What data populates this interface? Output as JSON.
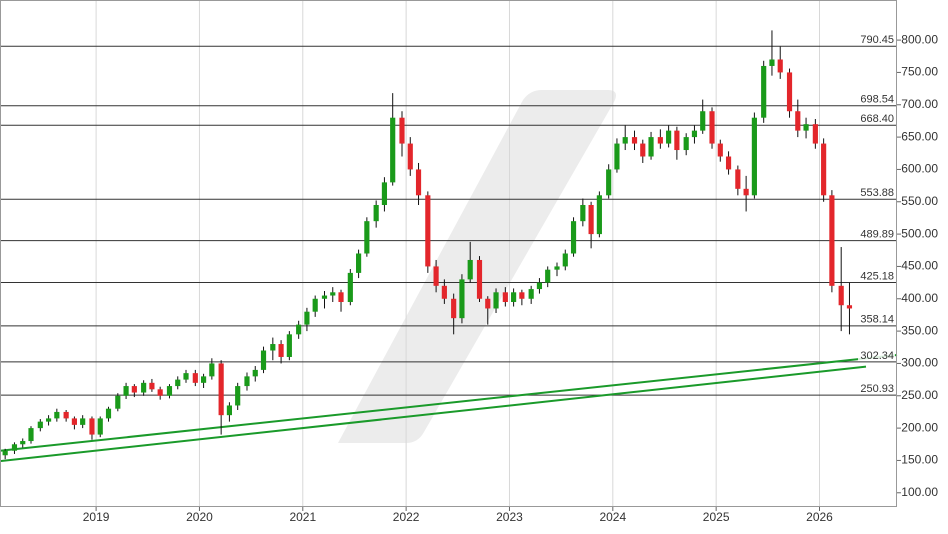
{
  "chart_data": {
    "type": "candlestick",
    "up_color": "#1a9a1a",
    "down_color": "#e3262b",
    "wick_color": "#111111",
    "trend_color": "#1a9a2a",
    "level_color": "#333333",
    "grid": true,
    "xlim": [
      2018.07,
      2026.75
    ],
    "xticks": [
      2019,
      2020,
      2021,
      2022,
      2023,
      2024,
      2025,
      2026
    ],
    "ylim": [
      78,
      862
    ],
    "yticks": [
      {
        "value": 100,
        "label": "100.00"
      },
      {
        "value": 150,
        "label": "150.00"
      },
      {
        "value": 200,
        "label": "200.00"
      },
      {
        "value": 250,
        "label": "250.00"
      },
      {
        "value": 300,
        "label": "300.00"
      },
      {
        "value": 350,
        "label": "350.00"
      },
      {
        "value": 400,
        "label": "400.00"
      },
      {
        "value": 450,
        "label": "450.00"
      },
      {
        "value": 500,
        "label": "500.00"
      },
      {
        "value": 550,
        "label": "550.00"
      },
      {
        "value": 600,
        "label": "600.00"
      },
      {
        "value": 650,
        "label": "650.00"
      },
      {
        "value": 700,
        "label": "700.00"
      },
      {
        "value": 750,
        "label": "750.00"
      },
      {
        "value": 800,
        "label": "800.00"
      }
    ],
    "levels": [
      790.45,
      698.54,
      {
        "value": 668.4,
        "label": "668.40"
      },
      553.88,
      489.89,
      425.18,
      358.14,
      302.34,
      250.93
    ],
    "trendlines": [
      {
        "x": [
          2018.07,
          2026.75
        ],
        "y": [
          165,
          313
        ]
      },
      {
        "x": [
          2018.07,
          2026.45
        ],
        "y": [
          149,
          295
        ]
      }
    ],
    "x": [
      2018.12,
      2018.21,
      2018.29,
      2018.37,
      2018.46,
      2018.54,
      2018.62,
      2018.71,
      2018.79,
      2018.87,
      2018.96,
      2019.04,
      2019.12,
      2019.21,
      2019.29,
      2019.37,
      2019.46,
      2019.54,
      2019.62,
      2019.71,
      2019.79,
      2019.87,
      2019.96,
      2020.04,
      2020.12,
      2020.21,
      2020.29,
      2020.37,
      2020.46,
      2020.54,
      2020.62,
      2020.71,
      2020.79,
      2020.87,
      2020.96,
      2021.04,
      2021.12,
      2021.21,
      2021.29,
      2021.37,
      2021.46,
      2021.54,
      2021.62,
      2021.71,
      2021.79,
      2021.87,
      2021.96,
      2022.04,
      2022.12,
      2022.21,
      2022.29,
      2022.37,
      2022.46,
      2022.54,
      2022.62,
      2022.71,
      2022.79,
      2022.87,
      2022.96,
      2023.04,
      2023.12,
      2023.21,
      2023.29,
      2023.37,
      2023.46,
      2023.54,
      2023.62,
      2023.71,
      2023.79,
      2023.87,
      2023.96,
      2024.04,
      2024.12,
      2024.21,
      2024.29,
      2024.37,
      2024.46,
      2024.54,
      2024.62,
      2024.71,
      2024.79,
      2024.87,
      2024.96,
      2025.04,
      2025.12,
      2025.21,
      2025.29,
      2025.37,
      2025.46,
      2025.54,
      2025.62,
      2025.71,
      2025.79,
      2025.87,
      2025.96,
      2026.04,
      2026.12,
      2026.21,
      2026.29
    ],
    "ohlc": [
      [
        158,
        168,
        152,
        165
      ],
      [
        165,
        178,
        160,
        175
      ],
      [
        175,
        184,
        170,
        180
      ],
      [
        180,
        203,
        176,
        200
      ],
      [
        200,
        214,
        195,
        210
      ],
      [
        210,
        220,
        204,
        215
      ],
      [
        215,
        230,
        210,
        225
      ],
      [
        225,
        228,
        210,
        215
      ],
      [
        215,
        218,
        198,
        205
      ],
      [
        205,
        220,
        200,
        215
      ],
      [
        215,
        218,
        182,
        190
      ],
      [
        190,
        218,
        186,
        215
      ],
      [
        215,
        233,
        210,
        230
      ],
      [
        230,
        254,
        226,
        250
      ],
      [
        250,
        270,
        245,
        265
      ],
      [
        265,
        268,
        248,
        255
      ],
      [
        255,
        274,
        250,
        270
      ],
      [
        270,
        276,
        256,
        260
      ],
      [
        260,
        264,
        244,
        250
      ],
      [
        250,
        268,
        246,
        265
      ],
      [
        265,
        280,
        260,
        275
      ],
      [
        275,
        290,
        270,
        285
      ],
      [
        285,
        290,
        265,
        270
      ],
      [
        270,
        284,
        262,
        280
      ],
      [
        280,
        308,
        275,
        300
      ],
      [
        300,
        305,
        190,
        220
      ],
      [
        220,
        240,
        210,
        235
      ],
      [
        235,
        270,
        228,
        265
      ],
      [
        265,
        286,
        258,
        280
      ],
      [
        280,
        296,
        272,
        290
      ],
      [
        290,
        326,
        285,
        320
      ],
      [
        320,
        340,
        305,
        330
      ],
      [
        330,
        336,
        300,
        310
      ],
      [
        310,
        350,
        305,
        345
      ],
      [
        345,
        366,
        338,
        360
      ],
      [
        360,
        386,
        350,
        380
      ],
      [
        380,
        405,
        372,
        400
      ],
      [
        400,
        412,
        385,
        405
      ],
      [
        405,
        418,
        395,
        410
      ],
      [
        410,
        414,
        380,
        395
      ],
      [
        395,
        446,
        390,
        440
      ],
      [
        440,
        476,
        432,
        470
      ],
      [
        470,
        526,
        465,
        520
      ],
      [
        520,
        552,
        510,
        545
      ],
      [
        545,
        588,
        535,
        580
      ],
      [
        580,
        718,
        575,
        680
      ],
      [
        680,
        690,
        620,
        640
      ],
      [
        640,
        650,
        590,
        600
      ],
      [
        600,
        610,
        545,
        560
      ],
      [
        560,
        566,
        440,
        450
      ],
      [
        450,
        460,
        410,
        420
      ],
      [
        420,
        430,
        392,
        400
      ],
      [
        400,
        408,
        345,
        370
      ],
      [
        370,
        438,
        362,
        430
      ],
      [
        430,
        488,
        425,
        460
      ],
      [
        460,
        466,
        395,
        400
      ],
      [
        400,
        404,
        360,
        385
      ],
      [
        385,
        416,
        378,
        410
      ],
      [
        410,
        418,
        388,
        395
      ],
      [
        395,
        416,
        388,
        410
      ],
      [
        410,
        414,
        390,
        400
      ],
      [
        400,
        420,
        392,
        415
      ],
      [
        415,
        432,
        408,
        425
      ],
      [
        425,
        450,
        418,
        445
      ],
      [
        445,
        456,
        435,
        450
      ],
      [
        450,
        476,
        444,
        470
      ],
      [
        470,
        526,
        465,
        520
      ],
      [
        520,
        555,
        512,
        545
      ],
      [
        545,
        550,
        478,
        500
      ],
      [
        500,
        566,
        495,
        560
      ],
      [
        560,
        608,
        555,
        600
      ],
      [
        600,
        648,
        595,
        640
      ],
      [
        640,
        668,
        630,
        650
      ],
      [
        650,
        660,
        630,
        640
      ],
      [
        640,
        646,
        610,
        620
      ],
      [
        620,
        658,
        615,
        650
      ],
      [
        650,
        662,
        632,
        640
      ],
      [
        640,
        668,
        634,
        660
      ],
      [
        660,
        666,
        615,
        630
      ],
      [
        630,
        656,
        622,
        650
      ],
      [
        650,
        668,
        640,
        660
      ],
      [
        660,
        708,
        655,
        690
      ],
      [
        690,
        696,
        632,
        640
      ],
      [
        640,
        646,
        612,
        620
      ],
      [
        620,
        628,
        592,
        600
      ],
      [
        600,
        606,
        560,
        570
      ],
      [
        570,
        590,
        535,
        560
      ],
      [
        560,
        688,
        555,
        680
      ],
      [
        680,
        768,
        672,
        760
      ],
      [
        760,
        815,
        745,
        770
      ],
      [
        770,
        790,
        740,
        750
      ],
      [
        750,
        756,
        680,
        690
      ],
      [
        690,
        708,
        650,
        660
      ],
      [
        660,
        680,
        648,
        670
      ],
      [
        670,
        678,
        632,
        640
      ],
      [
        640,
        648,
        550,
        560
      ],
      [
        560,
        568,
        410,
        420
      ],
      [
        420,
        480,
        350,
        390
      ],
      [
        390,
        425,
        345,
        385
      ]
    ]
  }
}
